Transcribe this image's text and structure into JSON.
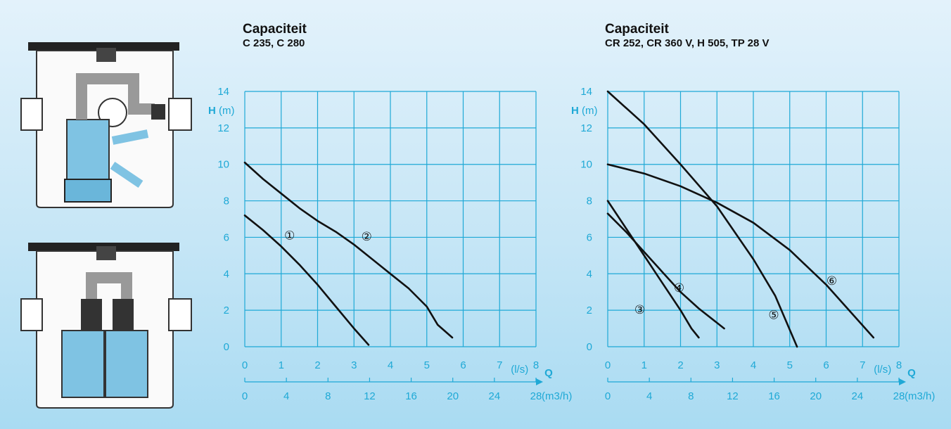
{
  "colors": {
    "grid": "#1fa9d6",
    "curve": "#111111",
    "pump": "#7fc3e3",
    "housing": "#ffffff"
  },
  "chart_data": [
    {
      "type": "line",
      "title": "Capaciteit",
      "subtitle": "C 235, C 280",
      "ylabel_bold": "H",
      "ylabel_unit": "(m)",
      "xlabel_bold": "Q",
      "x_unit_top": "(l/s)",
      "x_unit_bottom": "(m3/h)",
      "ylim": [
        0,
        14
      ],
      "xlim": [
        0,
        8
      ],
      "yticks": [
        "0",
        "2",
        "4",
        "6",
        "8",
        "10",
        "12",
        "14"
      ],
      "xticks_ls": [
        "0",
        "1",
        "2",
        "3",
        "4",
        "5",
        "6",
        "7",
        "8"
      ],
      "xticks_m3h": [
        "0",
        "4",
        "8",
        "12",
        "16",
        "20",
        "24",
        "28"
      ],
      "grid": true,
      "series": [
        {
          "name": "①",
          "x": [
            0,
            0.5,
            1,
            1.5,
            2,
            2.5,
            3,
            3.4
          ],
          "y": [
            7.2,
            6.4,
            5.5,
            4.5,
            3.4,
            2.2,
            1.0,
            0.1
          ]
        },
        {
          "name": "②",
          "x": [
            0,
            0.5,
            1,
            1.5,
            2,
            2.5,
            3,
            3.5,
            4,
            4.5,
            5,
            5.3,
            5.7
          ],
          "y": [
            10.1,
            9.2,
            8.4,
            7.6,
            6.9,
            6.3,
            5.6,
            4.8,
            4.0,
            3.2,
            2.2,
            1.2,
            0.5
          ]
        }
      ]
    },
    {
      "type": "line",
      "title": "Capaciteit",
      "subtitle": "CR 252, CR 360 V, H 505, TP 28 V",
      "ylabel_bold": "H",
      "ylabel_unit": "(m)",
      "xlabel_bold": "Q",
      "x_unit_top": "(l/s)",
      "x_unit_bottom": "(m3/h)",
      "ylim": [
        0,
        14
      ],
      "xlim": [
        0,
        8
      ],
      "yticks": [
        "0",
        "2",
        "4",
        "6",
        "8",
        "10",
        "12",
        "14"
      ],
      "xticks_ls": [
        "0",
        "1",
        "2",
        "3",
        "4",
        "5",
        "6",
        "7",
        "8"
      ],
      "xticks_m3h": [
        "0",
        "4",
        "8",
        "12",
        "16",
        "20",
        "24",
        "28"
      ],
      "grid": true,
      "series": [
        {
          "name": "③",
          "x": [
            0,
            0.5,
            1,
            1.5,
            2,
            2.3,
            2.5
          ],
          "y": [
            8.0,
            6.5,
            5.0,
            3.5,
            2.0,
            1.0,
            0.5
          ]
        },
        {
          "name": "④",
          "x": [
            0,
            0.5,
            1,
            1.5,
            2,
            2.5,
            3.2
          ],
          "y": [
            7.3,
            6.3,
            5.2,
            4.1,
            3.0,
            2.1,
            1.0
          ]
        },
        {
          "name": "⑤",
          "x": [
            0,
            1,
            2,
            3,
            4,
            4.6,
            5.2
          ],
          "y": [
            14.0,
            12.2,
            10.0,
            7.7,
            4.8,
            2.8,
            0.0
          ]
        },
        {
          "name": "⑥",
          "x": [
            0,
            1,
            2,
            3,
            4,
            5,
            6,
            7.3
          ],
          "y": [
            10.0,
            9.5,
            8.8,
            7.9,
            6.8,
            5.3,
            3.4,
            0.5
          ]
        }
      ]
    }
  ]
}
